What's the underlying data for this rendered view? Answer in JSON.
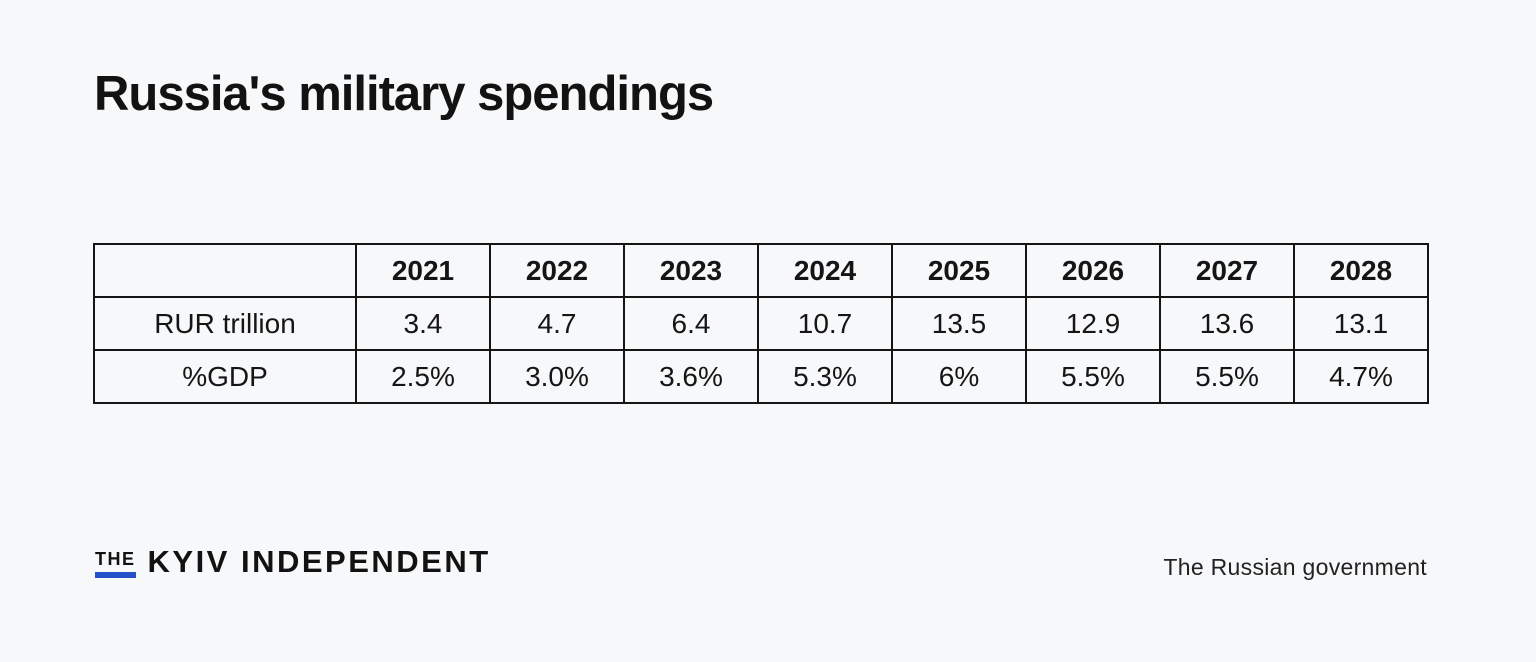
{
  "page": {
    "background_color": "#f7f8fa",
    "title": "Russia's military spendings"
  },
  "chart_data": {
    "type": "table",
    "title": "Russia's military spendings",
    "corner_header": "",
    "categories": [
      "2021",
      "2022",
      "2023",
      "2024",
      "2025",
      "2026",
      "2027",
      "2028"
    ],
    "series": [
      {
        "name": "RUR trillion",
        "values": [
          "3.4",
          "4.7",
          "6.4",
          "10.7",
          "13.5",
          "12.9",
          "13.6",
          "13.1"
        ]
      },
      {
        "name": "%GDP",
        "values": [
          "2.5%",
          "3.0%",
          "3.6%",
          "5.3%",
          "6%",
          "5.5%",
          "5.5%",
          "4.7%"
        ]
      }
    ],
    "border_color": "#151515",
    "source": "The Russian government"
  },
  "footer": {
    "logo_the": "THE",
    "logo_main": "KYIV INDEPENDENT",
    "logo_accent_color": "#2450cc",
    "source_label": "The Russian government"
  }
}
